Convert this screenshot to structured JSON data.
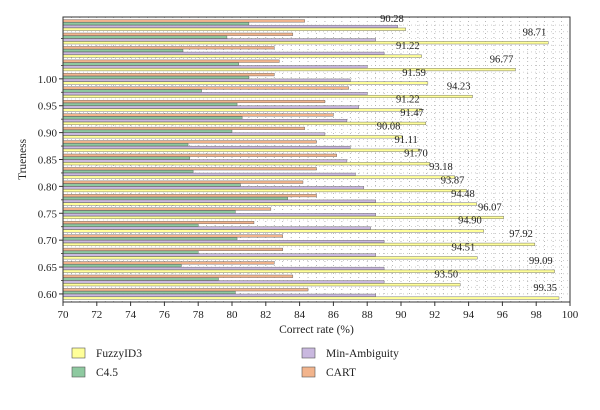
{
  "chart_data": {
    "type": "bar",
    "orientation": "horizontal",
    "xlabel": "Correct rate (%)",
    "ylabel": "Trueness",
    "xlim": [
      70,
      100
    ],
    "xticks": [
      "70",
      "72",
      "74",
      "76",
      "78",
      "80",
      "82",
      "84",
      "86",
      "88",
      "90",
      "92",
      "94",
      "96",
      "98",
      "100"
    ],
    "categories": [
      "0.60",
      "0.65",
      "0.70",
      "0.75",
      "0.80",
      "0.85",
      "0.90",
      "0.95",
      "1.00"
    ],
    "grid": true,
    "legend_position": "bottom",
    "legend_order": [
      "FuzzyID3",
      "C4.5",
      "Min-Ambiguity",
      "CART"
    ],
    "colors": {
      "FuzzyID3": "#ffff99",
      "Min-Ambiguity": "#c9b8df",
      "C4.5": "#8ec9a0",
      "CART": "#f2b48c"
    },
    "rows": [
      {
        "y": 0.6,
        "values": {
          "CART": 84.5,
          "C4.5": 80.2,
          "Min-Ambiguity": 88.5,
          "FuzzyID3": 99.35
        },
        "label": "99.35"
      },
      {
        "y": 0.625,
        "values": {
          "CART": 83.6,
          "C4.5": 79.2,
          "Min-Ambiguity": 89.0,
          "FuzzyID3": 93.5
        },
        "label": "93.50"
      },
      {
        "y": 0.65,
        "values": {
          "CART": 82.5,
          "C4.5": 77.0,
          "Min-Ambiguity": 89.0,
          "FuzzyID3": 99.09
        },
        "label": "99.09"
      },
      {
        "y": 0.675,
        "values": {
          "CART": 83.0,
          "C4.5": 78.0,
          "Min-Ambiguity": 88.5,
          "FuzzyID3": 94.51
        },
        "label": "94.51"
      },
      {
        "y": 0.7,
        "values": {
          "CART": 83.0,
          "C4.5": 80.3,
          "Min-Ambiguity": 89.0,
          "FuzzyID3": 97.92
        },
        "label": "97.92"
      },
      {
        "y": 0.725,
        "values": {
          "CART": 81.3,
          "C4.5": 78.0,
          "Min-Ambiguity": 88.2,
          "FuzzyID3": 94.9
        },
        "label": "94.90"
      },
      {
        "y": 0.75,
        "values": {
          "CART": 82.3,
          "C4.5": 80.2,
          "Min-Ambiguity": 88.5,
          "FuzzyID3": 96.07
        },
        "label": "96.07"
      },
      {
        "y": 0.775,
        "values": {
          "CART": 85.0,
          "C4.5": 83.3,
          "Min-Ambiguity": 88.5,
          "FuzzyID3": 94.48
        },
        "label": "94.48"
      },
      {
        "y": 0.8,
        "values": {
          "CART": 84.2,
          "C4.5": 80.5,
          "Min-Ambiguity": 87.8,
          "FuzzyID3": 93.87
        },
        "label": "93.87"
      },
      {
        "y": 0.825,
        "values": {
          "CART": 85.0,
          "C4.5": 77.7,
          "Min-Ambiguity": 87.3,
          "FuzzyID3": 93.18
        },
        "label": "93.18"
      },
      {
        "y": 0.85,
        "values": {
          "CART": 86.2,
          "C4.5": 77.5,
          "Min-Ambiguity": 86.8,
          "FuzzyID3": 91.7
        },
        "label": "91.70"
      },
      {
        "y": 0.875,
        "values": {
          "CART": 85.0,
          "C4.5": 77.4,
          "Min-Ambiguity": 87.0,
          "FuzzyID3": 91.11
        },
        "label": "91.11"
      },
      {
        "y": 0.9,
        "values": {
          "CART": 84.3,
          "C4.5": 80.0,
          "Min-Ambiguity": 85.5,
          "FuzzyID3": 90.08
        },
        "label": "90.08"
      },
      {
        "y": 0.925,
        "values": {
          "CART": 86.0,
          "C4.5": 80.6,
          "Min-Ambiguity": 86.8,
          "FuzzyID3": 91.47
        },
        "label": "91.47"
      },
      {
        "y": 0.95,
        "values": {
          "CART": 85.5,
          "C4.5": 80.3,
          "Min-Ambiguity": 87.5,
          "FuzzyID3": 91.22
        },
        "label": "91.22"
      },
      {
        "y": 0.975,
        "values": {
          "CART": 86.9,
          "C4.5": 78.2,
          "Min-Ambiguity": 88.0,
          "FuzzyID3": 94.23
        },
        "label": "94.23"
      },
      {
        "y": 1.0,
        "values": {
          "CART": 82.5,
          "C4.5": 81.0,
          "Min-Ambiguity": 87.0,
          "FuzzyID3": 91.59
        },
        "label": "91.59"
      },
      {
        "y": 1.025,
        "values": {
          "CART": 82.8,
          "C4.5": 80.4,
          "Min-Ambiguity": 88.0,
          "FuzzyID3": 96.77
        },
        "label": "96.77"
      },
      {
        "y": 1.05,
        "values": {
          "CART": 82.5,
          "C4.5": 77.1,
          "Min-Ambiguity": 89.0,
          "FuzzyID3": 91.22
        },
        "label": "91.22"
      },
      {
        "y": 1.075,
        "values": {
          "CART": 83.6,
          "C4.5": 79.7,
          "Min-Ambiguity": 88.5,
          "FuzzyID3": 98.71
        },
        "label": "98.71"
      },
      {
        "y": 1.1,
        "values": {
          "CART": 84.3,
          "C4.5": 81.0,
          "Min-Ambiguity": 89.8,
          "FuzzyID3": 90.28
        },
        "label": "90.28"
      }
    ]
  }
}
